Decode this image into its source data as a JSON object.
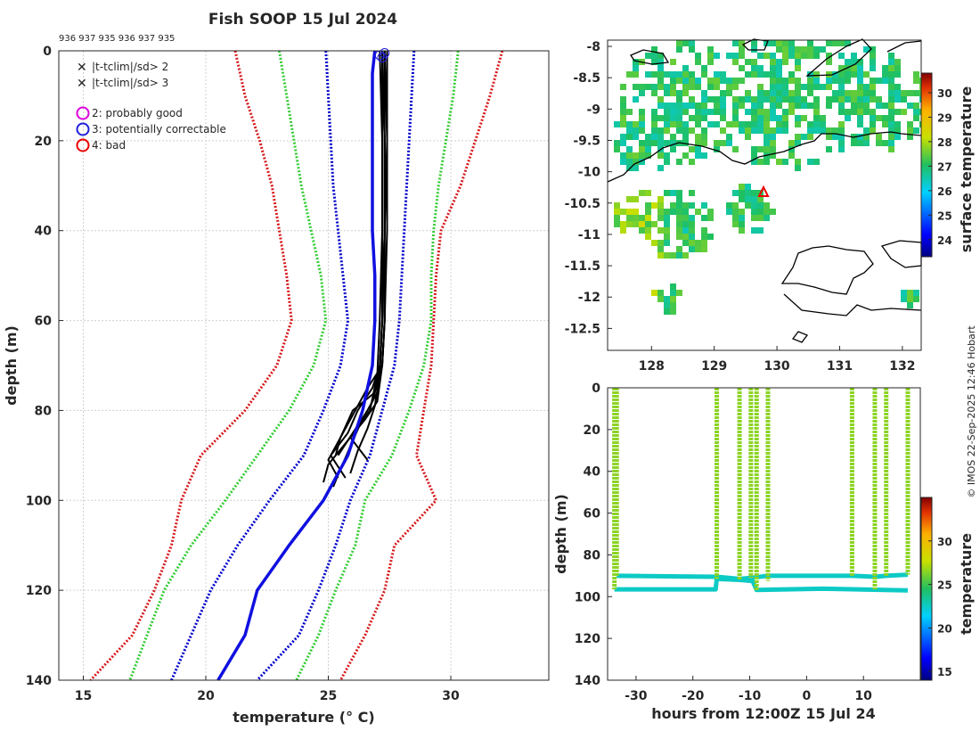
{
  "title": "Fish SOOP 15 Jul 2024",
  "station_ids": "936 937 935 936 937 935",
  "credit": "© IMOS 22-Sep-2025 12:46 Hobart",
  "colors": {
    "clim_red": "#d7191c",
    "clim_green": "#33cc33",
    "clim_blue": "#0000cc",
    "profile_mean": "#1010e0",
    "profile": "#000000",
    "legend_green_x": "#22dd22",
    "legend_red_x": "#ee0000",
    "flag2": "#dd00dd",
    "flag3": "#1f1fdd",
    "flag4": "#ee0000"
  },
  "legend": {
    "x_green": "|t-tclim|/sd> 2",
    "x_red": "|t-tclim|/sd> 3",
    "flag2": "2: probably good",
    "flag3": "3: potentially correctable",
    "flag4": "4: bad"
  },
  "chart_data": [
    {
      "id": "profile",
      "type": "line",
      "xlabel": "temperature (° C)",
      "ylabel": "depth (m)",
      "xlim": [
        14,
        34
      ],
      "ylim": [
        0,
        140
      ],
      "y_reversed": true,
      "xticks": [
        15,
        20,
        25,
        30
      ],
      "yticks": [
        0,
        20,
        40,
        60,
        80,
        100,
        120,
        140
      ],
      "depth": [
        0,
        10,
        20,
        30,
        40,
        50,
        60,
        70,
        80,
        90,
        100,
        110,
        120,
        130,
        140
      ],
      "climatology": [
        {
          "name": "mean - 3sd",
          "color": "clim_red",
          "values": [
            21.2,
            21.6,
            22.2,
            22.7,
            23.0,
            23.3,
            23.5,
            22.9,
            21.6,
            19.8,
            19.0,
            18.6,
            17.9,
            17.0,
            15.3
          ]
        },
        {
          "name": "mean - 2sd",
          "color": "clim_green",
          "values": [
            23.0,
            23.3,
            23.6,
            23.9,
            24.3,
            24.7,
            24.9,
            24.4,
            23.4,
            22.1,
            20.8,
            19.4,
            18.3,
            17.6,
            16.9
          ]
        },
        {
          "name": "mean - 1sd",
          "color": "clim_blue",
          "values": [
            24.9,
            25.0,
            25.1,
            25.2,
            25.4,
            25.6,
            25.8,
            25.5,
            24.8,
            24.0,
            22.6,
            21.3,
            20.2,
            19.4,
            18.6
          ]
        },
        {
          "name": "mean + 1sd",
          "color": "clim_blue",
          "values": [
            28.5,
            28.4,
            28.3,
            28.2,
            28.1,
            28.0,
            27.9,
            27.7,
            27.2,
            26.7,
            25.9,
            25.3,
            24.6,
            23.8,
            22.1
          ]
        },
        {
          "name": "mean + 2sd",
          "color": "clim_green",
          "values": [
            30.3,
            30.1,
            29.8,
            29.5,
            29.3,
            29.2,
            29.2,
            28.9,
            28.3,
            27.6,
            26.5,
            26.1,
            25.3,
            24.6,
            23.7
          ]
        },
        {
          "name": "mean + 3sd",
          "color": "clim_red",
          "values": [
            32.1,
            31.6,
            31.0,
            30.4,
            29.6,
            29.4,
            29.3,
            29.2,
            28.9,
            28.6,
            29.4,
            27.7,
            27.3,
            26.5,
            25.5
          ]
        }
      ],
      "mean_profile": {
        "depth": [
          0,
          5,
          10,
          20,
          30,
          40,
          50,
          60,
          70,
          80,
          90,
          100,
          110,
          120,
          130,
          140
        ],
        "values": [
          26.9,
          26.8,
          26.8,
          26.8,
          26.8,
          26.8,
          26.9,
          26.9,
          26.8,
          26.4,
          25.8,
          24.8,
          23.4,
          22.1,
          21.6,
          20.5
        ]
      },
      "profiles": [
        {
          "depth": [
            0,
            20,
            40,
            60,
            70,
            75,
            80,
            85,
            90,
            95
          ],
          "values": [
            27.2,
            27.3,
            27.3,
            27.2,
            27.1,
            26.8,
            26.2,
            25.8,
            25.1,
            25.7
          ]
        },
        {
          "depth": [
            0,
            20,
            40,
            60,
            70,
            78,
            82,
            86,
            91
          ],
          "values": [
            27.3,
            27.4,
            27.3,
            27.3,
            27.2,
            27.0,
            26.5,
            25.9,
            26.6
          ]
        },
        {
          "depth": [
            0,
            20,
            40,
            60,
            72,
            80,
            84,
            88,
            92,
            96
          ],
          "values": [
            27.2,
            27.2,
            27.2,
            27.1,
            27.0,
            26.7,
            26.2,
            25.6,
            25.0,
            24.8
          ]
        },
        {
          "depth": [
            0,
            20,
            40,
            60,
            70,
            76,
            80,
            85,
            90
          ],
          "values": [
            27.4,
            27.4,
            27.4,
            27.3,
            27.2,
            27.0,
            26.6,
            26.0,
            25.4
          ]
        },
        {
          "depth": [
            0,
            20,
            40,
            60,
            72,
            78,
            83,
            88,
            93,
            97
          ],
          "values": [
            27.2,
            27.3,
            27.3,
            27.2,
            27.1,
            26.8,
            26.3,
            25.9,
            25.5,
            25.2
          ]
        },
        {
          "depth": [
            0,
            20,
            40,
            60,
            70,
            76,
            80,
            86,
            90
          ],
          "values": [
            27.3,
            27.3,
            27.3,
            27.2,
            27.1,
            26.9,
            26.0,
            25.5,
            25.3
          ]
        },
        {
          "depth": [
            0,
            20,
            40,
            60,
            72,
            79,
            84,
            89,
            94
          ],
          "values": [
            27.1,
            27.2,
            27.2,
            27.2,
            27.1,
            26.9,
            26.6,
            26.2,
            25.9
          ]
        },
        {
          "depth": [
            0,
            20,
            40,
            60,
            70,
            75,
            82,
            87,
            91,
            95
          ],
          "values": [
            27.2,
            27.3,
            27.3,
            27.3,
            27.2,
            26.6,
            25.9,
            25.4,
            25.0,
            25.4
          ]
        }
      ],
      "flag3_markers": [
        {
          "x": 27.3,
          "y": 0.5
        },
        {
          "x": 27.1,
          "y": 1.0
        },
        {
          "x": 27.2,
          "y": 1.5
        }
      ]
    },
    {
      "id": "sst_map",
      "type": "heatmap",
      "xlim": [
        127.3,
        132.3
      ],
      "ylim": [
        -12.85,
        -7.9
      ],
      "xticks": [
        128,
        129,
        130,
        131,
        132
      ],
      "yticks": [
        -8,
        -8.5,
        -9,
        -9.5,
        -10,
        -10.5,
        -11,
        -11.5,
        -12,
        -12.5
      ],
      "xtick_labels": [
        "128",
        "129",
        "130",
        "131",
        "132"
      ],
      "ytick_labels": [
        "-8",
        "-8.5",
        "-9",
        "-9.5",
        "-10",
        "-10.5",
        "-11",
        "-11.5",
        "-12",
        "-12.5"
      ],
      "colorbar_label": "surface temperature",
      "colorbar_range": [
        23.3,
        30.8
      ],
      "colorbar_ticks": [
        24,
        25,
        26,
        27,
        28,
        29,
        30
      ],
      "station_marker": {
        "lon": 129.8,
        "lat": -10.33
      }
    },
    {
      "id": "depth_time",
      "type": "scatter",
      "xlabel": "hours from 12:00Z 15 Jul 24",
      "ylabel": "depth (m)",
      "xlim": [
        -35,
        20
      ],
      "ylim": [
        0,
        140
      ],
      "y_reversed": true,
      "xticks": [
        -30,
        -20,
        -10,
        0,
        10
      ],
      "yticks": [
        0,
        20,
        40,
        60,
        80,
        100,
        120,
        140
      ],
      "colorbar_label": "temperature",
      "colorbar_range": [
        14,
        35
      ],
      "colorbar_ticks": [
        15,
        20,
        25,
        30
      ],
      "casts": [
        {
          "hour": -33.8,
          "max_depth": 96.5
        },
        {
          "hour": -33.4,
          "max_depth": 90.0
        },
        {
          "hour": -15.8,
          "max_depth": 91.5
        },
        {
          "hour": -11.8,
          "max_depth": 92.0
        },
        {
          "hour": -9.8,
          "max_depth": 91.0
        },
        {
          "hour": -8.8,
          "max_depth": 97.0
        },
        {
          "hour": -6.8,
          "max_depth": 92.5
        },
        {
          "hour": 8.0,
          "max_depth": 90.0
        },
        {
          "hour": 12.0,
          "max_depth": 96.5
        },
        {
          "hour": 14.0,
          "max_depth": 90.0
        },
        {
          "hour": 17.8,
          "max_depth": 89.5
        }
      ],
      "tow_segments": [
        {
          "hours": [
            -33.8,
            -16,
            -15.8,
            -11.8,
            -9.5,
            -8.8,
            3,
            17.8
          ],
          "depths": [
            96.5,
            96.5,
            91.5,
            92.0,
            92.5,
            96.8,
            96.2,
            97.0
          ]
        },
        {
          "hours": [
            -33.4,
            -15.8,
            -11.8,
            -9.8,
            -6.8,
            8,
            12,
            14,
            17.8
          ],
          "depths": [
            90.0,
            90.5,
            91.5,
            91.0,
            90.0,
            90.0,
            90.5,
            90.0,
            89.5
          ]
        }
      ]
    }
  ]
}
